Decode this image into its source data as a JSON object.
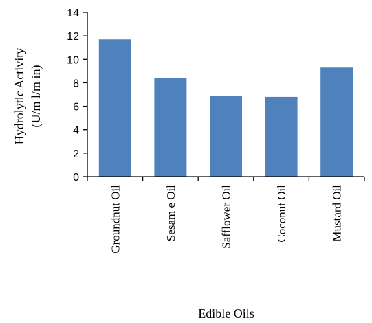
{
  "chart_data": {
    "type": "bar",
    "categories": [
      "Groundnut Oil",
      "Sesam e Oil",
      "Safflower Oil",
      "Coconut Oil",
      "Mustard Oil"
    ],
    "values": [
      11.7,
      8.4,
      6.9,
      6.8,
      9.3
    ],
    "ylabel_line1": "Hydrolytic Activity",
    "ylabel_line2": "(U/m l/m in)",
    "xlabel": "Edible Oils",
    "ylim": [
      0,
      14
    ],
    "yticks": [
      0,
      2,
      4,
      6,
      8,
      10,
      12,
      14
    ],
    "grid": false,
    "legend": "none",
    "bar_color": "#4f81bd"
  }
}
